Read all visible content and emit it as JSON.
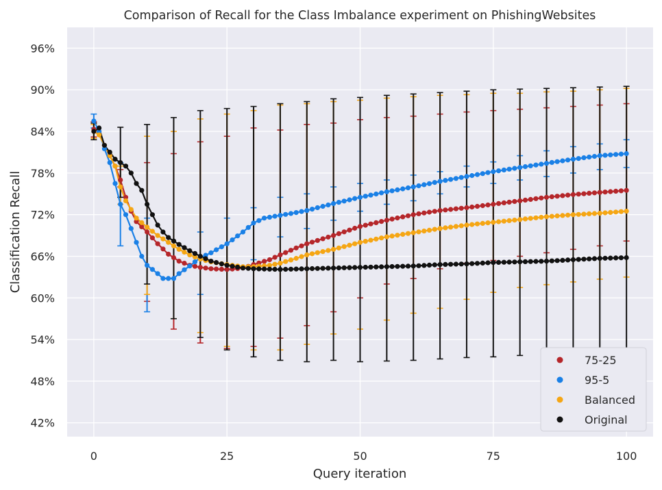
{
  "chart_data": {
    "type": "line",
    "title": "Comparison of Recall for the Class Imbalance experiment on PhishingWebsites",
    "xlabel": "Query iteration",
    "ylabel": "Classification Recall",
    "xlim": [
      -5,
      105
    ],
    "ylim": [
      40,
      99
    ],
    "x_ticks": [
      0,
      25,
      50,
      75,
      100
    ],
    "x_tick_labels": [
      "0",
      "25",
      "50",
      "75",
      "100"
    ],
    "y_ticks": [
      42,
      48,
      54,
      60,
      66,
      72,
      78,
      84,
      90,
      96
    ],
    "y_tick_labels": [
      "42%",
      "48%",
      "54%",
      "60%",
      "66%",
      "72%",
      "78%",
      "84%",
      "90%",
      "96%"
    ],
    "grid": true,
    "legend_position": "bottom-right",
    "background_color": "#eaeaf2",
    "series": [
      {
        "name": "75-25",
        "color": "#b5262a",
        "knots": [
          [
            0,
            84.3
          ],
          [
            1,
            84.0
          ],
          [
            2,
            82.0
          ],
          [
            3,
            80.5
          ],
          [
            4,
            79.0
          ],
          [
            5,
            77.0
          ],
          [
            6,
            74.5
          ],
          [
            7,
            72.5
          ],
          [
            8,
            71.0
          ],
          [
            10,
            69.5
          ],
          [
            12,
            67.8
          ],
          [
            14,
            66.3
          ],
          [
            16,
            65.3
          ],
          [
            18,
            64.7
          ],
          [
            20,
            64.4
          ],
          [
            22,
            64.2
          ],
          [
            25,
            64.1
          ],
          [
            28,
            64.3
          ],
          [
            30,
            64.8
          ],
          [
            33,
            65.5
          ],
          [
            35,
            66.2
          ],
          [
            38,
            67.2
          ],
          [
            40,
            67.8
          ],
          [
            45,
            69.0
          ],
          [
            50,
            70.3
          ],
          [
            55,
            71.2
          ],
          [
            60,
            72.0
          ],
          [
            65,
            72.6
          ],
          [
            70,
            73.0
          ],
          [
            75,
            73.5
          ],
          [
            80,
            74.0
          ],
          [
            85,
            74.5
          ],
          [
            90,
            74.9
          ],
          [
            95,
            75.2
          ],
          [
            100,
            75.5
          ]
        ],
        "error_x": [
          0,
          5,
          10,
          15,
          20,
          25,
          30,
          35,
          40,
          45,
          50,
          55,
          60,
          65,
          70,
          75,
          80,
          85,
          90,
          95,
          100
        ],
        "error_low": [
          83.2,
          76.0,
          59.5,
          55.5,
          53.5,
          52.7,
          53.0,
          54.2,
          56.0,
          58.0,
          60.0,
          62.0,
          62.8,
          64.2,
          65.0,
          65.4,
          66.0,
          66.5,
          67.0,
          67.5,
          68.2
        ],
        "error_high": [
          85.4,
          78.5,
          79.5,
          80.8,
          82.5,
          83.3,
          84.5,
          84.2,
          85.0,
          85.2,
          85.7,
          86.0,
          86.2,
          86.5,
          86.8,
          87.0,
          87.2,
          87.4,
          87.6,
          87.8,
          88.0
        ]
      },
      {
        "name": "95-5",
        "color": "#1a80e6",
        "knots": [
          [
            0,
            85.5
          ],
          [
            1,
            84.0
          ],
          [
            2,
            81.5
          ],
          [
            3,
            79.5
          ],
          [
            4,
            76.5
          ],
          [
            5,
            73.5
          ],
          [
            6,
            72.0
          ],
          [
            7,
            70.0
          ],
          [
            8,
            68.0
          ],
          [
            9,
            66.0
          ],
          [
            10,
            64.7
          ],
          [
            12,
            63.5
          ],
          [
            13,
            62.8
          ],
          [
            15,
            62.8
          ],
          [
            16,
            63.5
          ],
          [
            18,
            64.6
          ],
          [
            20,
            65.8
          ],
          [
            22,
            66.5
          ],
          [
            25,
            67.8
          ],
          [
            28,
            69.5
          ],
          [
            30,
            70.8
          ],
          [
            32,
            71.5
          ],
          [
            35,
            71.9
          ],
          [
            38,
            72.3
          ],
          [
            40,
            72.6
          ],
          [
            45,
            73.6
          ],
          [
            50,
            74.5
          ],
          [
            55,
            75.3
          ],
          [
            60,
            76.0
          ],
          [
            65,
            76.8
          ],
          [
            70,
            77.5
          ],
          [
            75,
            78.2
          ],
          [
            80,
            78.8
          ],
          [
            85,
            79.4
          ],
          [
            90,
            80.0
          ],
          [
            95,
            80.5
          ],
          [
            100,
            80.8
          ]
        ],
        "error_x": [
          0,
          5,
          10,
          20,
          25,
          30,
          35,
          40,
          45,
          50,
          55,
          60,
          65,
          70,
          75,
          80,
          85,
          90,
          95,
          100
        ],
        "error_low": [
          84.5,
          67.5,
          58.0,
          60.5,
          64.0,
          65.5,
          68.8,
          70.0,
          71.2,
          72.5,
          73.5,
          74.0,
          75.0,
          76.0,
          76.5,
          77.0,
          77.5,
          78.0,
          78.5,
          78.8
        ],
        "error_high": [
          86.5,
          79.5,
          71.5,
          69.5,
          71.5,
          73.0,
          74.5,
          75.0,
          76.0,
          76.5,
          77.0,
          77.7,
          78.2,
          79.0,
          79.6,
          80.5,
          81.2,
          81.8,
          82.2,
          82.8
        ]
      },
      {
        "name": "Balanced",
        "color": "#f5a614",
        "knots": [
          [
            0,
            84.0
          ],
          [
            1,
            83.5
          ],
          [
            2,
            82.0
          ],
          [
            4,
            79.0
          ],
          [
            5,
            76.0
          ],
          [
            6,
            74.0
          ],
          [
            8,
            71.5
          ],
          [
            10,
            70.2
          ],
          [
            12,
            69.0
          ],
          [
            14,
            68.0
          ],
          [
            16,
            67.0
          ],
          [
            18,
            66.2
          ],
          [
            20,
            65.6
          ],
          [
            22,
            65.2
          ],
          [
            25,
            64.8
          ],
          [
            28,
            64.5
          ],
          [
            30,
            64.5
          ],
          [
            33,
            64.7
          ],
          [
            35,
            65.0
          ],
          [
            38,
            65.7
          ],
          [
            40,
            66.2
          ],
          [
            45,
            67.0
          ],
          [
            50,
            68.0
          ],
          [
            55,
            68.8
          ],
          [
            60,
            69.4
          ],
          [
            65,
            70.0
          ],
          [
            70,
            70.5
          ],
          [
            75,
            70.9
          ],
          [
            80,
            71.3
          ],
          [
            85,
            71.7
          ],
          [
            90,
            72.0
          ],
          [
            95,
            72.2
          ],
          [
            100,
            72.5
          ]
        ],
        "error_x": [
          0,
          5,
          10,
          15,
          20,
          25,
          30,
          35,
          40,
          45,
          50,
          55,
          60,
          65,
          70,
          75,
          80,
          85,
          90,
          95,
          100
        ],
        "error_low": [
          83.0,
          73.5,
          60.5,
          57.0,
          55.0,
          53.0,
          52.5,
          52.5,
          53.3,
          54.8,
          55.5,
          56.8,
          57.8,
          58.5,
          59.8,
          60.8,
          61.5,
          61.9,
          62.3,
          62.7,
          63.0
        ],
        "error_high": [
          85.0,
          79.0,
          83.3,
          84.0,
          85.8,
          86.5,
          87.0,
          87.8,
          88.0,
          88.3,
          88.5,
          88.8,
          89.0,
          89.2,
          89.3,
          89.5,
          89.5,
          89.7,
          89.8,
          90.0,
          90.2
        ]
      },
      {
        "name": "Original",
        "color": "#111111",
        "knots": [
          [
            0,
            84.0
          ],
          [
            1,
            84.5
          ],
          [
            2,
            82.0
          ],
          [
            3,
            81.0
          ],
          [
            4,
            80.0
          ],
          [
            5,
            79.5
          ],
          [
            6,
            79.0
          ],
          [
            7,
            78.0
          ],
          [
            8,
            76.5
          ],
          [
            9,
            75.5
          ],
          [
            10,
            73.5
          ],
          [
            11,
            72.0
          ],
          [
            12,
            70.5
          ],
          [
            13,
            69.5
          ],
          [
            14,
            68.7
          ],
          [
            16,
            67.7
          ],
          [
            18,
            66.8
          ],
          [
            20,
            66.0
          ],
          [
            22,
            65.3
          ],
          [
            25,
            64.7
          ],
          [
            28,
            64.3
          ],
          [
            30,
            64.2
          ],
          [
            35,
            64.1
          ],
          [
            40,
            64.2
          ],
          [
            45,
            64.3
          ],
          [
            50,
            64.4
          ],
          [
            55,
            64.5
          ],
          [
            60,
            64.6
          ],
          [
            65,
            64.8
          ],
          [
            70,
            64.9
          ],
          [
            75,
            65.1
          ],
          [
            80,
            65.2
          ],
          [
            85,
            65.3
          ],
          [
            90,
            65.5
          ],
          [
            95,
            65.7
          ],
          [
            100,
            65.8
          ]
        ],
        "error_x": [
          0,
          5,
          10,
          15,
          20,
          25,
          30,
          35,
          40,
          45,
          50,
          55,
          60,
          65,
          70,
          75,
          80,
          85,
          90,
          95,
          100
        ],
        "error_low": [
          82.8,
          74.5,
          62.0,
          57.0,
          54.3,
          52.5,
          51.5,
          51.0,
          50.8,
          51.0,
          50.8,
          50.9,
          51.0,
          51.2,
          51.4,
          51.5,
          51.7,
          51.8,
          52.0,
          52.1,
          52.2
        ],
        "error_high": [
          85.2,
          84.6,
          85.0,
          86.0,
          87.0,
          87.3,
          87.6,
          88.0,
          88.3,
          88.7,
          88.9,
          89.2,
          89.4,
          89.6,
          89.8,
          90.0,
          90.1,
          90.2,
          90.3,
          90.4,
          90.5
        ]
      }
    ],
    "legend_entries": [
      "75-25",
      "95-5",
      "Balanced",
      "Original"
    ]
  }
}
